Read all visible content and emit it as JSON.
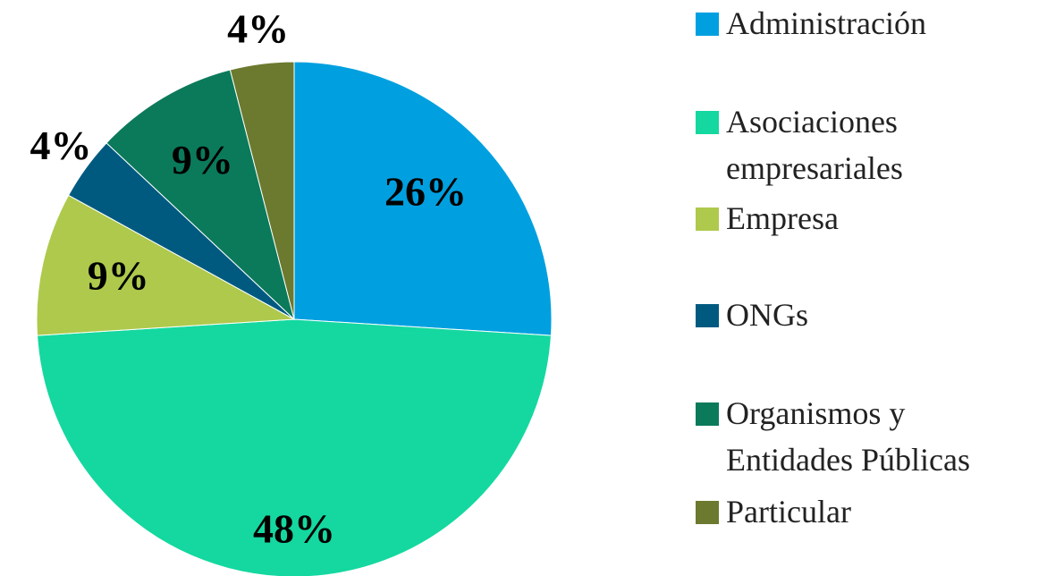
{
  "chart_data": {
    "type": "pie",
    "categories": [
      "Administración",
      "Asociaciones empresariales",
      "Empresa",
      "ONGs",
      "Organismos y Entidades Públicas",
      "Particular"
    ],
    "values": [
      26,
      48,
      9,
      4,
      9,
      4
    ],
    "value_labels": [
      "26%",
      "48%",
      "9%",
      "4%",
      "9%",
      "4%"
    ],
    "colors": [
      "#00a0e0",
      "#14d8a0",
      "#aec94c",
      "#005a80",
      "#0b7a5a",
      "#6b7a2e"
    ],
    "legend": "right"
  }
}
